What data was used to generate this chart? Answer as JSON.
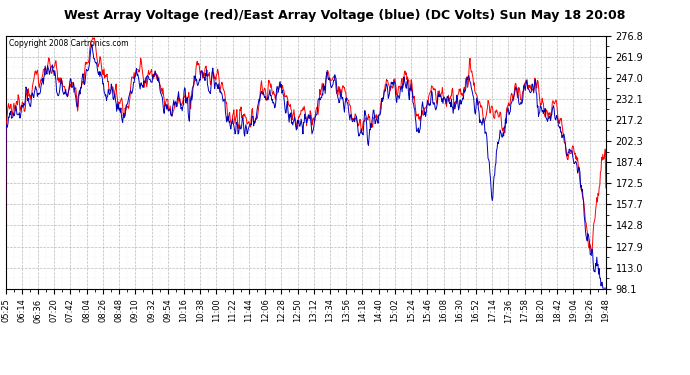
{
  "title": "West Array Voltage (red)/East Array Voltage (blue) (DC Volts) Sun May 18 20:08",
  "copyright": "Copyright 2008 Cartronics.com",
  "ymin": 98.1,
  "ymax": 276.8,
  "yticks": [
    276.8,
    261.9,
    247.0,
    232.1,
    217.2,
    202.3,
    187.4,
    172.5,
    157.7,
    142.8,
    127.9,
    113.0,
    98.1
  ],
  "background_color": "#ffffff",
  "plot_bg_color": "#ffffff",
  "grid_color": "#aaaaaa",
  "red_color": "#ff0000",
  "blue_color": "#0000bb",
  "title_fontsize": 9.5,
  "copyright_fontsize": 6.5
}
